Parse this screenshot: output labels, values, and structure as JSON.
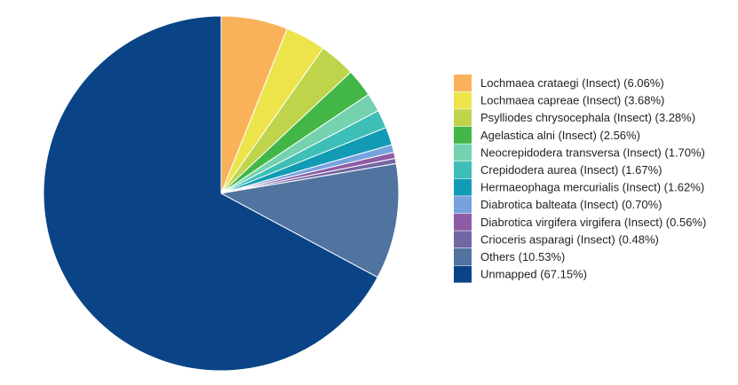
{
  "chart_data": {
    "type": "pie",
    "start_angle_deg": 0,
    "direction": "clockwise",
    "legend_position": "right",
    "slices": [
      {
        "label": "Lochmaea crataegi (Insect) (6.06%)",
        "value": 6.06,
        "color": "#F9B25A"
      },
      {
        "label": "Lochmaea capreae (Insect) (3.68%)",
        "value": 3.68,
        "color": "#ECE44A"
      },
      {
        "label": "Psylliodes chrysocephala (Insect) (3.28%)",
        "value": 3.28,
        "color": "#BFD44B"
      },
      {
        "label": "Agelastica alni (Insect) (2.56%)",
        "value": 2.56,
        "color": "#43B648"
      },
      {
        "label": "Neocrepidodera transversa (Insect) (1.70%)",
        "value": 1.7,
        "color": "#74D2AE"
      },
      {
        "label": "Crepidodera aurea (Insect) (1.67%)",
        "value": 1.67,
        "color": "#3DBFB7"
      },
      {
        "label": "Hermaeophaga mercurialis (Insect) (1.62%)",
        "value": 1.62,
        "color": "#129BB4"
      },
      {
        "label": "Diabrotica balteata (Insect) (0.70%)",
        "value": 0.7,
        "color": "#76A2DE"
      },
      {
        "label": "Diabrotica virgifera virgifera (Insect) (0.56%)",
        "value": 0.56,
        "color": "#8E5CA5"
      },
      {
        "label": "Crioceris asparagi (Insect) (0.48%)",
        "value": 0.48,
        "color": "#7266A3"
      },
      {
        "label": "Others (10.53%)",
        "value": 10.53,
        "color": "#50739F"
      },
      {
        "label": "Unmapped (67.15%)",
        "value": 67.15,
        "color": "#0A4487"
      }
    ]
  }
}
